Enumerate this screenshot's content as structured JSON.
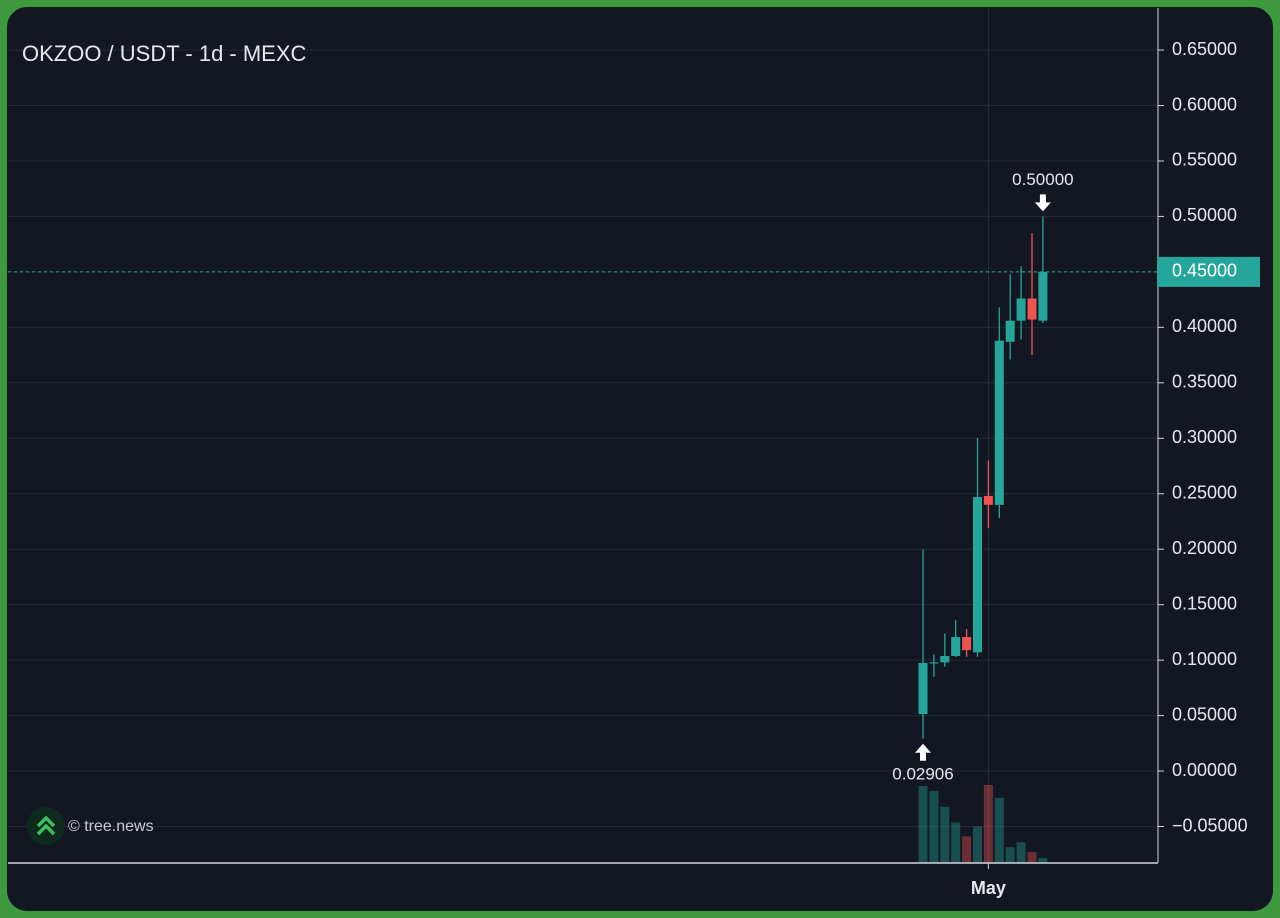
{
  "chart_data": {
    "type": "candlestick",
    "title": "OKZOO / USDT - 1d - MEXC",
    "watermark": "© tree.news",
    "categories": [
      null,
      null,
      null,
      null,
      null,
      null,
      "May",
      null,
      null,
      null,
      null,
      null
    ],
    "open": [
      0.0514,
      0.097,
      0.098,
      0.1037,
      0.1208,
      0.107,
      0.248,
      0.24,
      0.387,
      0.406,
      0.426,
      0.406
    ],
    "high": [
      0.2,
      0.105,
      0.124,
      0.136,
      0.128,
      0.3,
      0.28,
      0.418,
      0.448,
      0.455,
      0.485,
      0.5
    ],
    "low": [
      0.02906,
      0.085,
      0.094,
      0.103,
      0.103,
      0.103,
      0.219,
      0.228,
      0.371,
      0.389,
      0.375,
      0.404
    ],
    "close": [
      0.0974,
      0.098,
      0.1037,
      0.1208,
      0.109,
      0.247,
      0.24,
      0.388,
      0.406,
      0.426,
      0.407,
      0.45
    ],
    "volume": [
      78,
      73,
      57,
      41,
      27,
      37,
      79,
      66,
      16,
      21,
      11,
      5
    ],
    "up_color": "#26a69a",
    "down_color": "#ef5350",
    "ylim": [
      -0.0829,
      0.6879
    ],
    "yticks": [
      {
        "value": -0.05,
        "label": "−0.05000"
      },
      {
        "value": 0,
        "label": "0.00000"
      },
      {
        "value": 0.05,
        "label": "0.05000"
      },
      {
        "value": 0.1,
        "label": "0.10000"
      },
      {
        "value": 0.15,
        "label": "0.15000"
      },
      {
        "value": 0.2,
        "label": "0.20000"
      },
      {
        "value": 0.25,
        "label": "0.25000"
      },
      {
        "value": 0.3,
        "label": "0.30000"
      },
      {
        "value": 0.35,
        "label": "0.35000"
      },
      {
        "value": 0.4,
        "label": "0.40000"
      },
      {
        "value": 0.45,
        "label": "0.45000"
      },
      {
        "value": 0.5,
        "label": "0.50000"
      },
      {
        "value": 0.55,
        "label": "0.55000"
      },
      {
        "value": 0.6,
        "label": "0.60000"
      },
      {
        "value": 0.65,
        "label": "0.65000"
      }
    ],
    "grid": true,
    "last_price": {
      "value": 0.45,
      "label": "0.45000"
    },
    "annotations": [
      {
        "value": 0.5,
        "label": "0.50000"
      },
      {
        "value": 0.02906,
        "label": "0.02906"
      }
    ]
  }
}
